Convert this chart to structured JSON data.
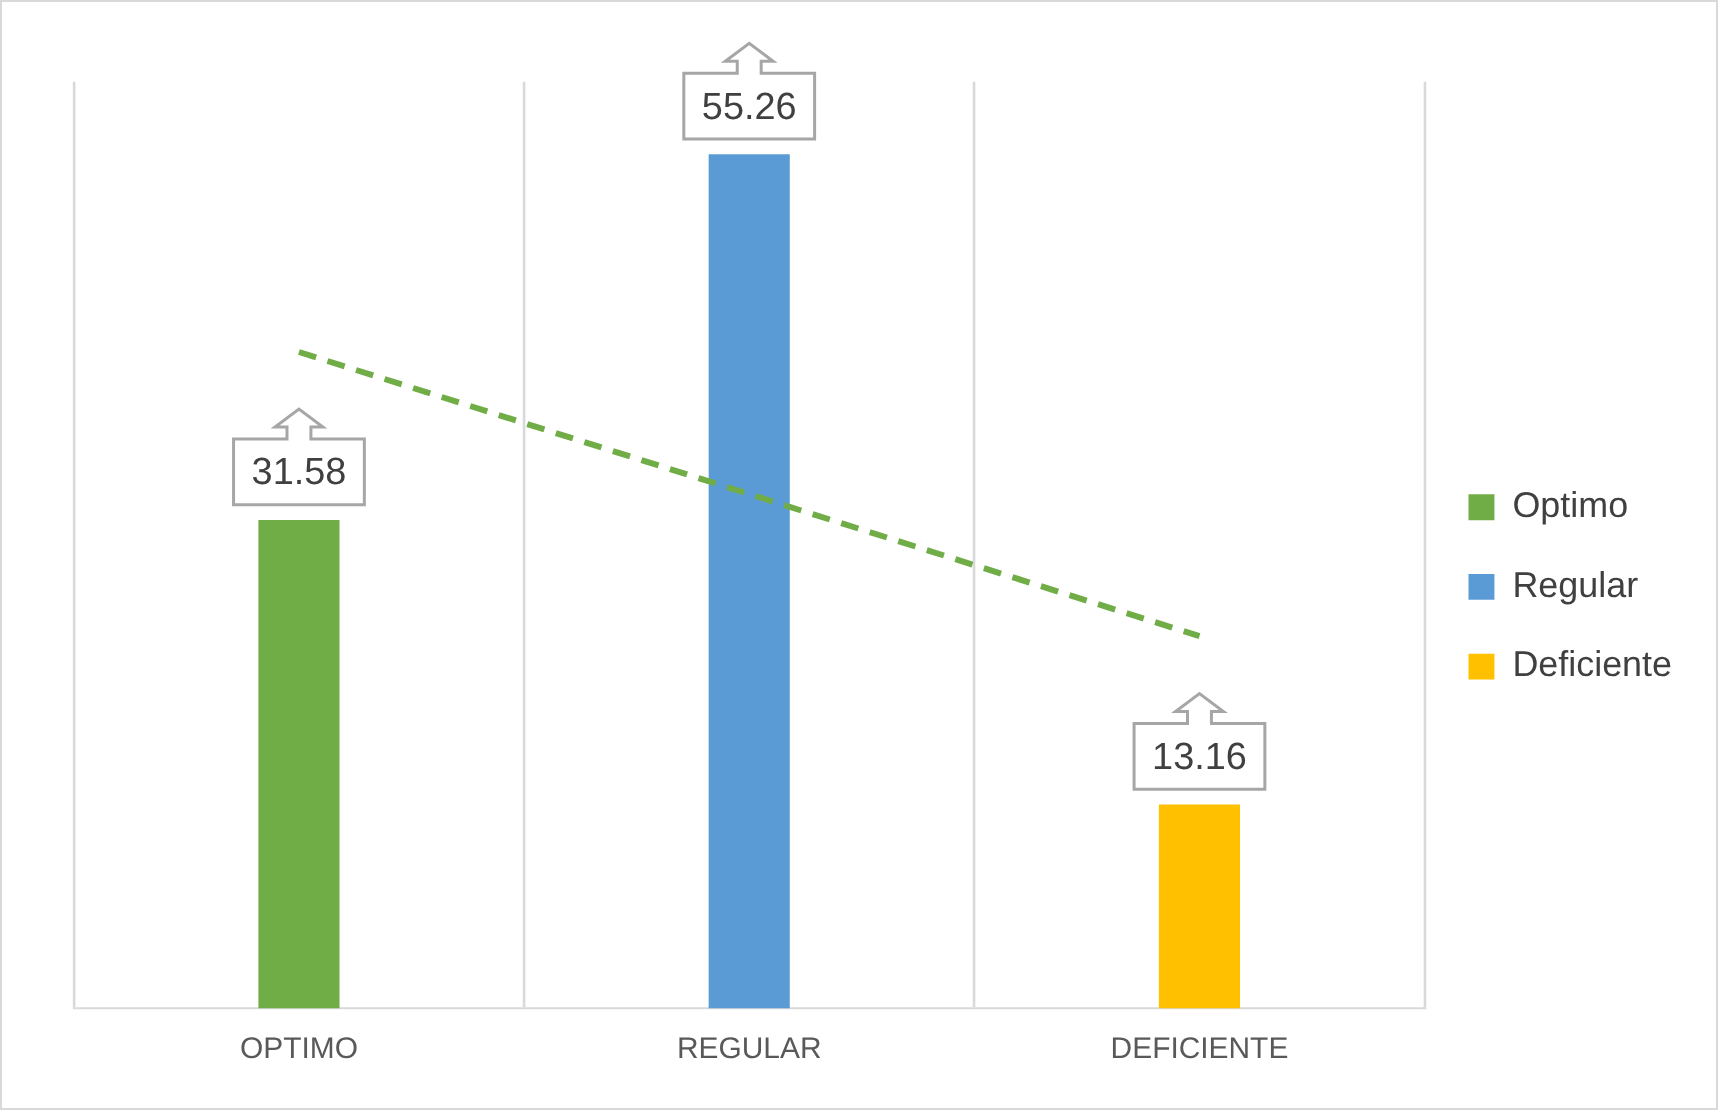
{
  "chart_data": {
    "type": "bar",
    "categories": [
      "OPTIMO",
      "REGULAR",
      "DEFICIENTE"
    ],
    "series": [
      {
        "name": "Optimo",
        "color": "#70ad47",
        "values": [
          31.58,
          null,
          null
        ],
        "value_labels": [
          "31.58",
          null,
          null
        ]
      },
      {
        "name": "Regular",
        "color": "#5b9bd5",
        "values": [
          null,
          55.26,
          null
        ],
        "value_labels": [
          null,
          "55.26",
          null
        ]
      },
      {
        "name": "Deficiente",
        "color": "#ffc000",
        "values": [
          null,
          null,
          13.16
        ],
        "value_labels": [
          null,
          null,
          "13.16"
        ]
      },
      {
        "type": "line",
        "color": "#70ad47",
        "values": [
          42.5,
          33.3,
          24.1
        ],
        "line_style": "dashed",
        "marker": "none"
      }
    ],
    "grid": "x",
    "legend": "right"
  }
}
